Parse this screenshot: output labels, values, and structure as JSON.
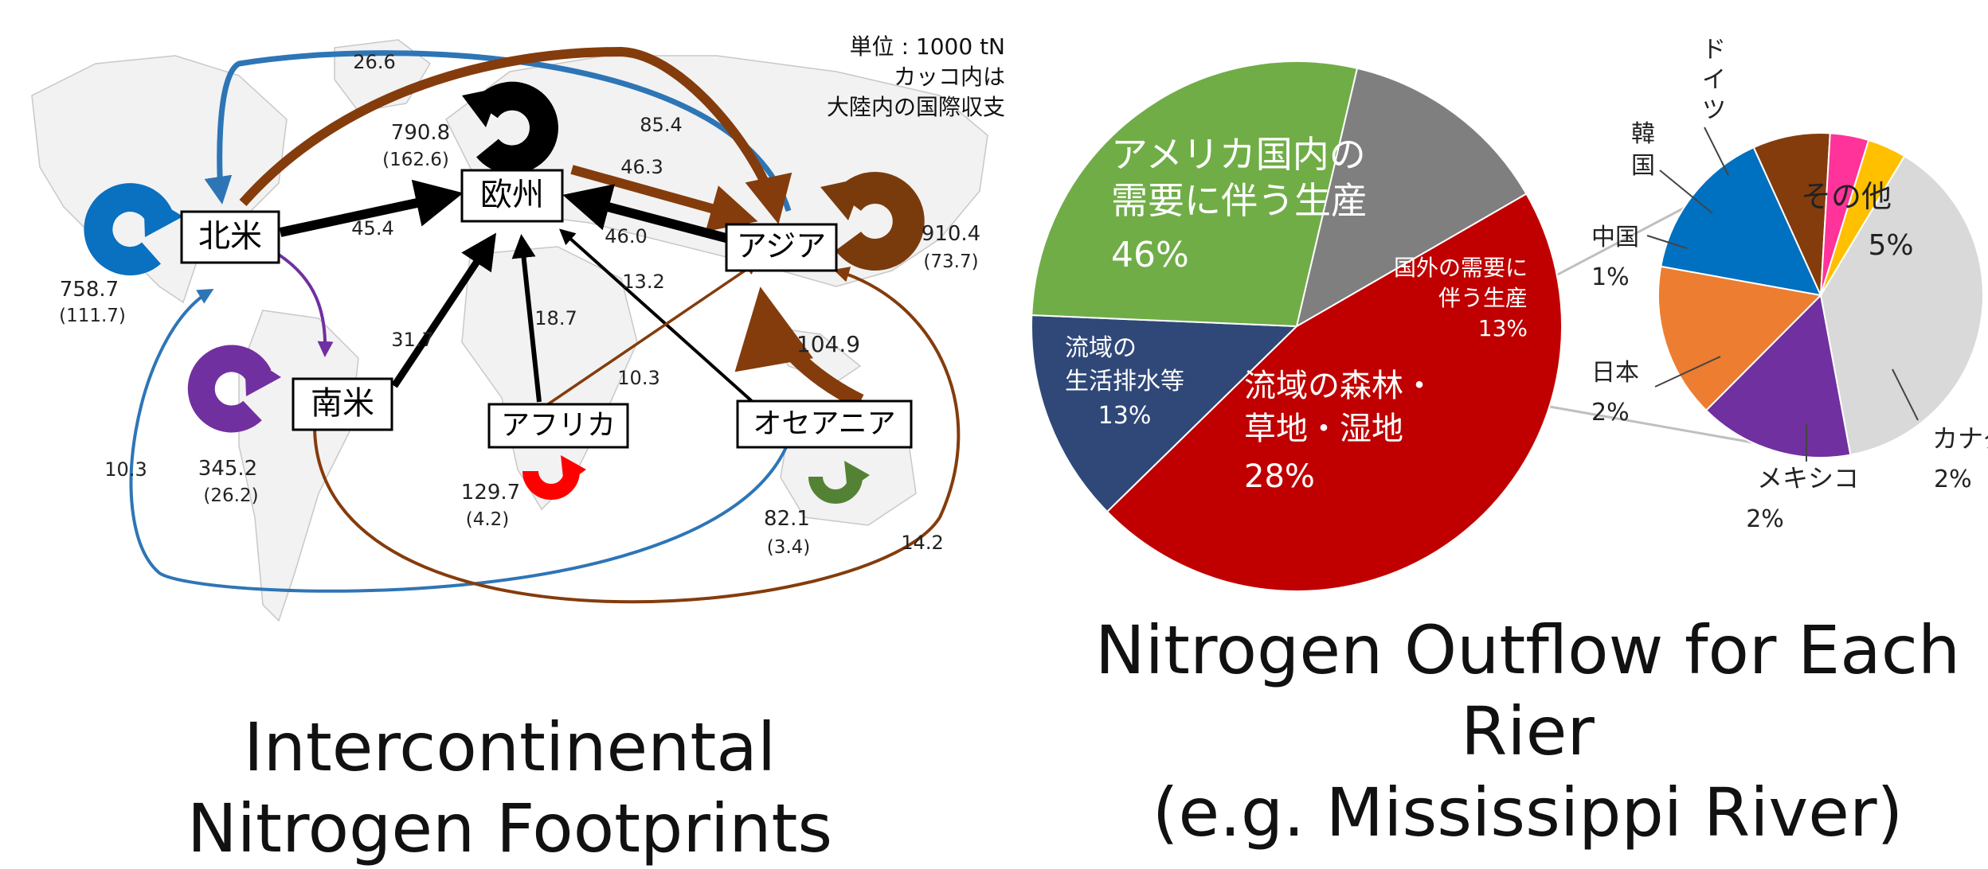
{
  "flow_map": {
    "unit_note": [
      "単位 : 1000 tN",
      "カッコ内は",
      "大陸内の国際収支"
    ],
    "continents": [
      {
        "id": "north-america",
        "label": "北米",
        "self": "758.7",
        "intra": "(111.7)",
        "color": "#0a70c0"
      },
      {
        "id": "europe",
        "label": "欧州",
        "self": "790.8",
        "intra": "(162.6)",
        "color": "#000000"
      },
      {
        "id": "asia",
        "label": "アジア",
        "self": "910.4",
        "intra": "(73.7)",
        "color": "#7a3b0c"
      },
      {
        "id": "south-america",
        "label": "南米",
        "self": "345.2",
        "intra": "(26.2)",
        "color": "#7030a0"
      },
      {
        "id": "africa",
        "label": "アフリカ",
        "self": "129.7",
        "intra": "(4.2)",
        "color": "#ff0000"
      },
      {
        "id": "oceania",
        "label": "オセアニア",
        "self": "82.1",
        "intra": "(3.4)",
        "color": "#548235"
      }
    ],
    "flows": [
      {
        "id": "asia-to-north-america-top",
        "value": "26.6",
        "color": "#2e75b6"
      },
      {
        "id": "north-america-to-asia-top",
        "value": "85.4",
        "color": "#843c0c"
      },
      {
        "id": "europe-to-asia",
        "value": "46.3",
        "color": "#843c0c"
      },
      {
        "id": "asia-to-europe",
        "value": "46.0",
        "color": "#000000"
      },
      {
        "id": "north-america-to-europe",
        "value": "45.4",
        "color": "#000000"
      },
      {
        "id": "south-america-to-europe",
        "value": "31.7",
        "color": "#000000"
      },
      {
        "id": "africa-to-europe",
        "value": "18.7",
        "color": "#000000"
      },
      {
        "id": "oceania-to-europe",
        "value": "13.2",
        "color": "#000000"
      },
      {
        "id": "africa-to-asia",
        "value": "10.3",
        "color": "#843c0c"
      },
      {
        "id": "oceania-to-asia",
        "value": "104.9",
        "color": "#843c0c"
      },
      {
        "id": "oceania-to-north-america",
        "value": "10.3",
        "color": "#2e75b6"
      },
      {
        "id": "south-america-to-asia",
        "value": "14.2",
        "color": "#843c0c"
      },
      {
        "id": "north-america-to-south-america",
        "value": "",
        "color": "#7030a0"
      }
    ]
  },
  "chart_data": {
    "type": "pie",
    "main_pie": {
      "slices": [
        {
          "label": [
            "アメリカ国内の",
            "需要に伴う生産"
          ],
          "percent": "46%",
          "value": 46,
          "color": "#c00000"
        },
        {
          "label": [
            "国外の需要に",
            "伴う生産"
          ],
          "percent": "13%",
          "value": 13,
          "color": "#2f4878"
        },
        {
          "label": [
            "流域の森林・",
            "草地・湿地"
          ],
          "percent": "28%",
          "value": 28,
          "color": "#70ad47"
        },
        {
          "label": [
            "流域の",
            "生活排水等"
          ],
          "percent": "13%",
          "value": 13,
          "color": "#7f7f7f"
        }
      ]
    },
    "breakdown_pie": {
      "of": "国外の需要に伴う生産",
      "slices": [
        {
          "label": "その他",
          "percent": "5%",
          "value": 5,
          "color": "#d9d9d9"
        },
        {
          "label": "カナダ",
          "percent": "2%",
          "value": 2,
          "color": "#7030a0"
        },
        {
          "label": "メキシコ",
          "percent": "2%",
          "value": 2,
          "color": "#ed7d31"
        },
        {
          "label": "日本",
          "percent": "2%",
          "value": 2,
          "color": "#0070c0"
        },
        {
          "label": "中国",
          "percent": "1%",
          "value": 1,
          "color": "#843c0c"
        },
        {
          "label": "韓国",
          "percent": "",
          "value": 0.5,
          "color": "#ff3399"
        },
        {
          "label": "ドイツ",
          "percent": "",
          "value": 0.5,
          "color": "#ffc000"
        }
      ]
    }
  },
  "captions": {
    "left": [
      "Intercontinental",
      "Nitrogen Footprints"
    ],
    "right": [
      "Nitrogen Outflow for Each",
      "Rier",
      "(e.g. Mississippi River)"
    ]
  }
}
